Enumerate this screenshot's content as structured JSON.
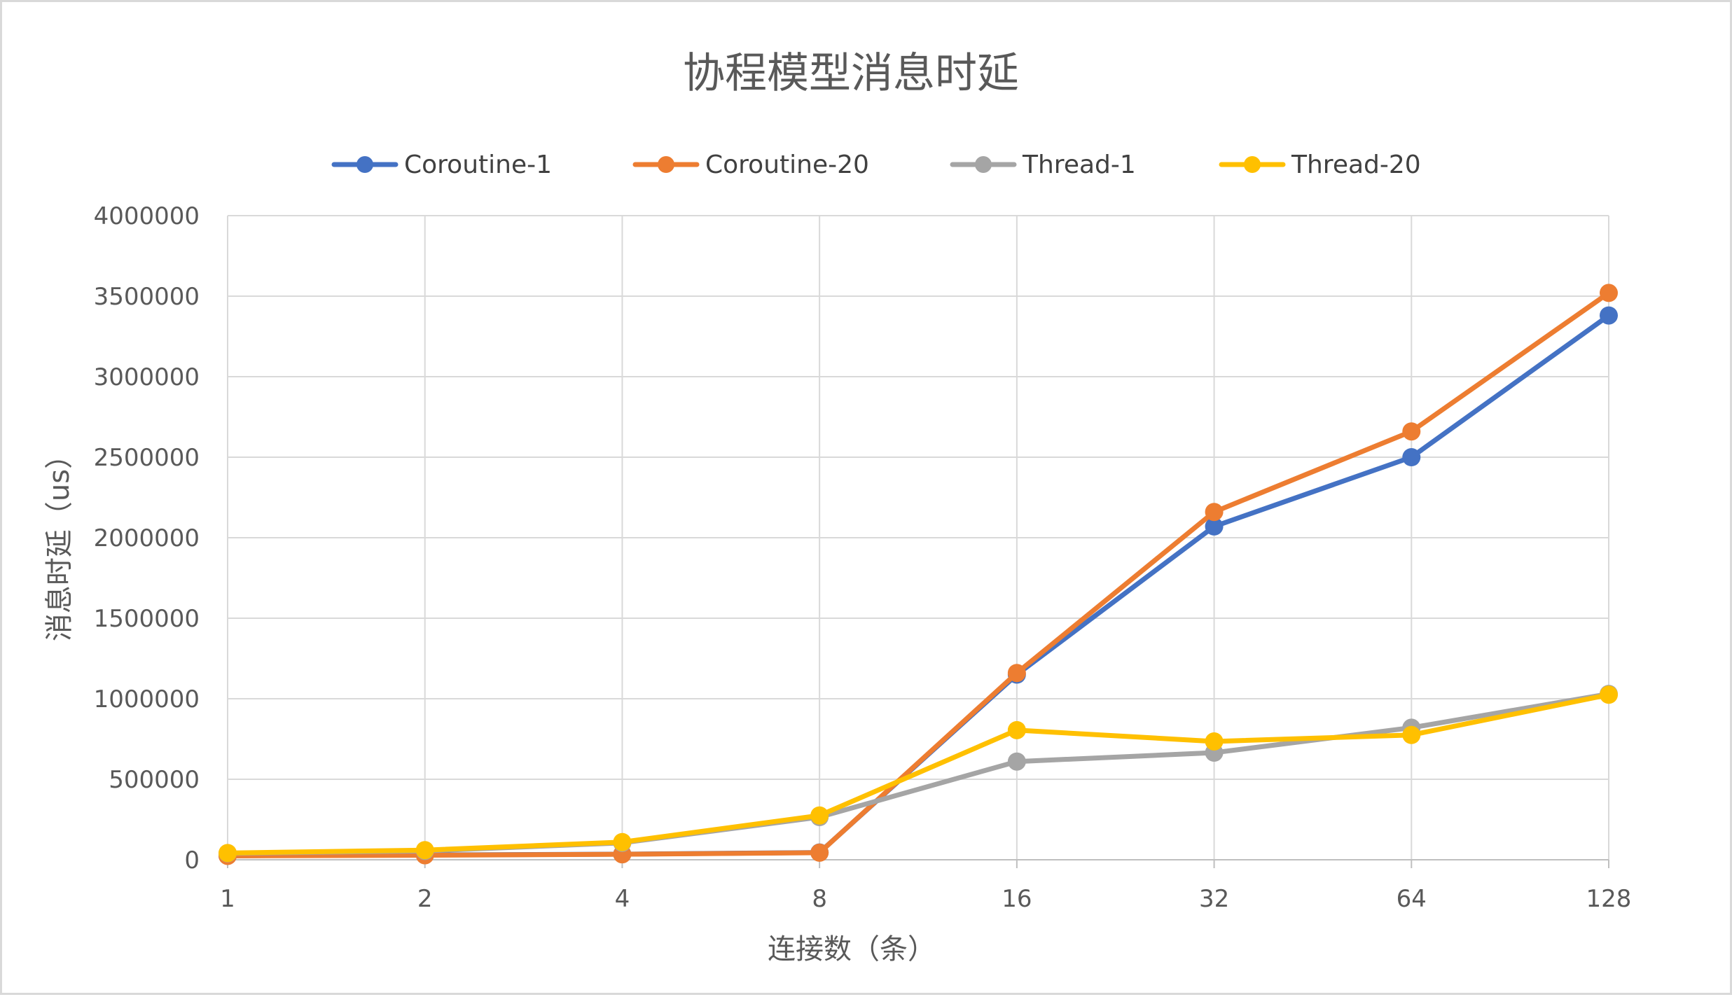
{
  "chart_data": {
    "type": "line",
    "title": "协程模型消息时延",
    "xlabel": "连接数（条）",
    "ylabel": "消息时延（us）",
    "categories": [
      "1",
      "2",
      "4",
      "8",
      "16",
      "32",
      "64",
      "128"
    ],
    "ylim": [
      0,
      4000000
    ],
    "y_ticks": [
      "0",
      "500000",
      "1000000",
      "1500000",
      "2000000",
      "2500000",
      "3000000",
      "3500000",
      "4000000"
    ],
    "grid": true,
    "legend_position": "top",
    "series": [
      {
        "name": "Coroutine-1",
        "color": "#4472c4",
        "values": [
          25000,
          30000,
          35000,
          45000,
          1150000,
          2070000,
          2500000,
          3380000
        ]
      },
      {
        "name": "Coroutine-20",
        "color": "#ed7d31",
        "values": [
          24000,
          28000,
          34000,
          44000,
          1160000,
          2160000,
          2660000,
          3520000
        ]
      },
      {
        "name": "Thread-1",
        "color": "#a5a5a5",
        "values": [
          40000,
          55000,
          105000,
          265000,
          610000,
          665000,
          820000,
          1030000
        ]
      },
      {
        "name": "Thread-20",
        "color": "#ffc000",
        "values": [
          42000,
          60000,
          110000,
          275000,
          805000,
          735000,
          775000,
          1025000
        ]
      }
    ]
  }
}
